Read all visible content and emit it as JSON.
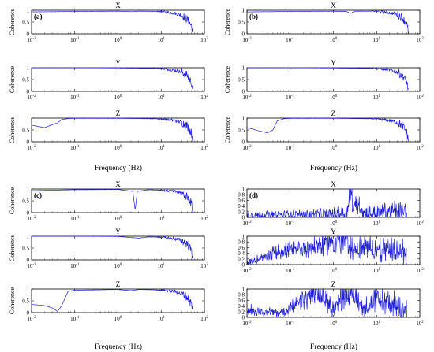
{
  "figure": {
    "xlabel": "Frequency (Hz)",
    "ylabel": "Coherence",
    "x_scale": "log",
    "x_range": [
      0.01,
      100
    ],
    "x_tick_labels": [
      {
        "base": "10",
        "exp": "-2"
      },
      {
        "base": "10",
        "exp": "-1"
      },
      {
        "base": "10",
        "exp": "0"
      },
      {
        "base": "10",
        "exp": "1"
      },
      {
        "base": "10",
        "exp": "2"
      }
    ],
    "line_color": "#1f1fd6",
    "axis_color": "#000000"
  },
  "chart_data": [
    {
      "type": "line",
      "panel_label": "(a)",
      "title": "X",
      "ylabel": "Coherence",
      "ylim": [
        0,
        1
      ],
      "y_ticks": [
        "0",
        "0.5",
        "1"
      ],
      "x_scale": "log",
      "series": [
        {
          "x": [
            0.01,
            0.1,
            1,
            2,
            3,
            10,
            20,
            30,
            40,
            50,
            55
          ],
          "y": [
            0.93,
            0.95,
            0.96,
            0.94,
            0.96,
            0.95,
            0.88,
            0.8,
            0.62,
            0.35,
            0.02
          ]
        }
      ]
    },
    {
      "type": "line",
      "panel_label": "",
      "title": "Y",
      "ylabel": "Coherence",
      "ylim": [
        0,
        1
      ],
      "y_ticks": [
        "0",
        "0.5",
        "1"
      ],
      "x_scale": "log",
      "series": [
        {
          "x": [
            0.01,
            0.1,
            1,
            10,
            20,
            30,
            40,
            50,
            55
          ],
          "y": [
            1.0,
            1.0,
            0.99,
            0.97,
            0.9,
            0.82,
            0.68,
            0.38,
            0.02
          ]
        }
      ]
    },
    {
      "type": "line",
      "panel_label": "",
      "title": "Z",
      "ylabel": "Coherence",
      "ylim": [
        0,
        1
      ],
      "y_ticks": [
        "0",
        "0.5",
        "1"
      ],
      "x_scale": "log",
      "series": [
        {
          "x": [
            0.01,
            0.02,
            0.03,
            0.04,
            0.05,
            0.07,
            0.1,
            1,
            10,
            20,
            30,
            40,
            50,
            55
          ],
          "y": [
            0.7,
            0.6,
            0.72,
            0.8,
            0.94,
            0.98,
            0.99,
            0.99,
            0.97,
            0.9,
            0.82,
            0.68,
            0.38,
            0.02
          ]
        }
      ]
    },
    {
      "type": "line",
      "panel_label": "(b)",
      "title": "X",
      "ylabel": "Coherence",
      "ylim": [
        0,
        1
      ],
      "y_ticks": [
        "0",
        "0.5",
        "1"
      ],
      "x_scale": "log",
      "series": [
        {
          "x": [
            0.01,
            0.1,
            1,
            2,
            2.5,
            3,
            10,
            20,
            30,
            40,
            50,
            55
          ],
          "y": [
            0.93,
            0.95,
            0.96,
            0.95,
            0.86,
            0.96,
            0.96,
            0.9,
            0.82,
            0.68,
            0.4,
            0.02
          ]
        }
      ]
    },
    {
      "type": "line",
      "panel_label": "",
      "title": "Y",
      "ylabel": "Coherence",
      "ylim": [
        0,
        1
      ],
      "y_ticks": [
        "0",
        "0.5",
        "1"
      ],
      "x_scale": "log",
      "series": [
        {
          "x": [
            0.01,
            0.1,
            1,
            10,
            20,
            30,
            40,
            50,
            55
          ],
          "y": [
            1.0,
            1.0,
            0.99,
            0.97,
            0.9,
            0.82,
            0.68,
            0.38,
            0.02
          ]
        }
      ]
    },
    {
      "type": "line",
      "panel_label": "",
      "title": "Z",
      "ylabel": "Coherence",
      "ylim": [
        0,
        1
      ],
      "y_ticks": [
        "0",
        "0.5",
        "1"
      ],
      "x_scale": "log",
      "series": [
        {
          "x": [
            0.01,
            0.02,
            0.03,
            0.04,
            0.05,
            0.07,
            0.1,
            1,
            10,
            20,
            30,
            40,
            50,
            55
          ],
          "y": [
            0.6,
            0.45,
            0.38,
            0.5,
            0.88,
            0.97,
            0.99,
            0.99,
            0.97,
            0.9,
            0.82,
            0.68,
            0.38,
            0.02
          ]
        }
      ]
    },
    {
      "type": "line",
      "panel_label": "(c)",
      "title": "X",
      "ylabel": "Coherence",
      "ylim": [
        0,
        1
      ],
      "y_ticks": [
        "0",
        "0.5",
        "1"
      ],
      "x_scale": "log",
      "series": [
        {
          "x": [
            0.01,
            0.1,
            1,
            2.2,
            2.5,
            2.8,
            5,
            10,
            20,
            30,
            40,
            50,
            55
          ],
          "y": [
            0.93,
            0.97,
            0.98,
            0.9,
            0.1,
            0.9,
            0.97,
            0.95,
            0.9,
            0.82,
            0.68,
            0.4,
            0.02
          ]
        }
      ]
    },
    {
      "type": "line",
      "panel_label": "",
      "title": "Y",
      "ylabel": "Coherence",
      "ylim": [
        0,
        1
      ],
      "y_ticks": [
        "0",
        "0.5",
        "1"
      ],
      "x_scale": "log",
      "series": [
        {
          "x": [
            0.01,
            0.1,
            1,
            3,
            5,
            10,
            20,
            30,
            40,
            50,
            55
          ],
          "y": [
            1.0,
            1.0,
            0.99,
            0.92,
            0.97,
            0.96,
            0.9,
            0.82,
            0.68,
            0.38,
            0.02
          ]
        }
      ]
    },
    {
      "type": "line",
      "panel_label": "",
      "title": "Z",
      "ylabel": "Coherence",
      "ylim": [
        0,
        1
      ],
      "y_ticks": [
        "0",
        "0.5",
        "1"
      ],
      "x_scale": "log",
      "series": [
        {
          "x": [
            0.01,
            0.02,
            0.03,
            0.04,
            0.05,
            0.07,
            0.1,
            1,
            2,
            3,
            10,
            20,
            30,
            40,
            50,
            55
          ],
          "y": [
            0.35,
            0.3,
            0.2,
            0.05,
            0.3,
            0.9,
            0.95,
            0.98,
            0.93,
            0.98,
            0.96,
            0.9,
            0.8,
            0.65,
            0.38,
            0.02
          ]
        }
      ]
    },
    {
      "type": "line",
      "panel_label": "(d)",
      "title": "X",
      "ylabel": "",
      "ylim": [
        0,
        1
      ],
      "y_ticks": [
        "0",
        "0.2",
        "0.4",
        "0.6",
        "0.8",
        "1"
      ],
      "x_scale": "log",
      "series": [
        {
          "x": [
            0.01,
            0.1,
            1,
            2,
            2.5,
            3,
            3.5,
            5,
            10,
            20,
            50
          ],
          "y": [
            0.08,
            0.1,
            0.12,
            0.15,
            0.9,
            0.3,
            0.6,
            0.15,
            0.15,
            0.2,
            0.2
          ]
        }
      ]
    },
    {
      "type": "line",
      "panel_label": "",
      "title": "Y",
      "ylabel": "",
      "ylim": [
        0,
        1
      ],
      "y_ticks": [
        "0",
        "0.2",
        "0.4",
        "0.6",
        "0.8",
        "1"
      ],
      "x_scale": "log",
      "series": [
        {
          "x": [
            0.01,
            0.03,
            0.05,
            0.1,
            0.3,
            0.5,
            1,
            2,
            3,
            5,
            10,
            20,
            50
          ],
          "y": [
            0.05,
            0.3,
            0.45,
            0.5,
            0.6,
            0.7,
            0.82,
            0.9,
            0.5,
            0.6,
            0.55,
            0.5,
            0.4
          ]
        }
      ]
    },
    {
      "type": "line",
      "panel_label": "",
      "title": "Z",
      "ylabel": "",
      "ylim": [
        0,
        1
      ],
      "y_ticks": [
        "0",
        "0.2",
        "0.4",
        "0.6",
        "0.8",
        "1"
      ],
      "x_scale": "log",
      "series": [
        {
          "x": [
            0.01,
            0.03,
            0.05,
            0.1,
            0.3,
            0.5,
            1,
            2,
            3,
            5,
            10,
            20,
            50
          ],
          "y": [
            0.25,
            0.2,
            0.15,
            0.3,
            0.75,
            0.85,
            0.3,
            0.9,
            0.85,
            0.3,
            0.6,
            0.5,
            0.3
          ]
        }
      ]
    }
  ]
}
